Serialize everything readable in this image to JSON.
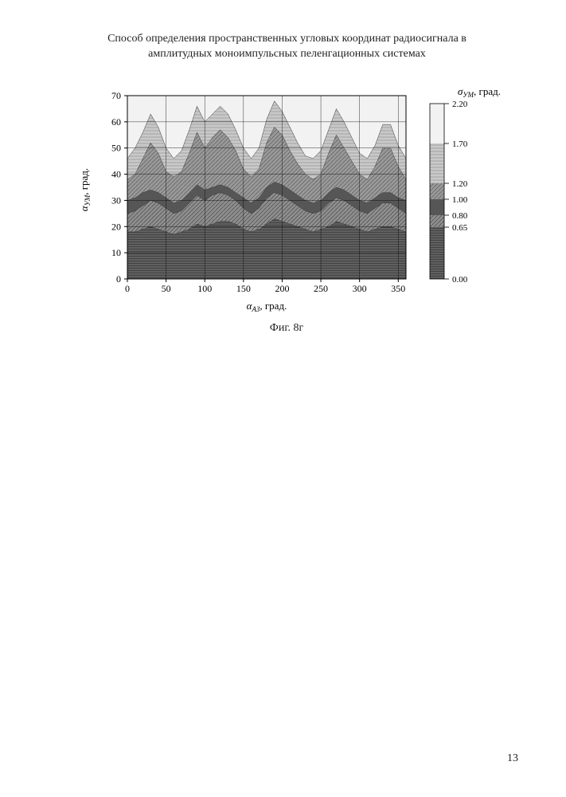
{
  "title_line1": "Способ определения пространственных угловых координат радиосигнала в",
  "title_line2": "амплитудных моноимпульсных пеленгационных системах",
  "caption": "Фиг. 8г",
  "page_number": "13",
  "chart": {
    "type": "filled-contour",
    "xlabel_sym": "α",
    "xlabel_sub": "АЗ",
    "xlabel_unit": ", град.",
    "ylabel_sym": "α",
    "ylabel_sub": "УМ",
    "ylabel_unit": ", град.",
    "cblabel_sym": "σ",
    "cblabel_sub": "УМ",
    "cblabel_unit": ", град.",
    "xlim": [
      0,
      360
    ],
    "ylim": [
      0,
      70
    ],
    "xticks": [
      0,
      50,
      100,
      150,
      200,
      250,
      300,
      350
    ],
    "yticks": [
      0,
      10,
      20,
      30,
      40,
      50,
      60,
      70
    ],
    "cb_levels": [
      0.0,
      0.65,
      0.8,
      1.0,
      1.2,
      1.7,
      2.2
    ],
    "cb_colors": [
      "#606060",
      "#8f8f8f",
      "#565656",
      "#9a9a9a",
      "#c9c9c9",
      "#f2f2f2"
    ],
    "cb_hatch": [
      "horiz",
      "diag",
      "solid",
      "diag",
      "horiz",
      "none"
    ],
    "background_color": "#ffffff",
    "grid_color": "#000000",
    "period_deg": 72,
    "contour_series": {
      "comment": "Approximate upper-boundary y-values (deg) for each level band, sampled every 10 deg in x. Bands stack from bottom (0.00) to top (2.20). Values read from figure gridlines.",
      "x_samples": [
        0,
        10,
        20,
        30,
        40,
        50,
        60,
        70,
        80,
        90,
        100,
        110,
        120,
        130,
        140,
        150,
        160,
        170,
        180,
        190,
        200,
        210,
        220,
        230,
        240,
        250,
        260,
        270,
        280,
        290,
        300,
        310,
        320,
        330,
        340,
        350,
        360
      ],
      "top_0_00": [
        18,
        18,
        19,
        20,
        19,
        18,
        17,
        18,
        19,
        21,
        20,
        21,
        22,
        22,
        21,
        19,
        18,
        19,
        21,
        23,
        22,
        21,
        20,
        19,
        18,
        19,
        20,
        22,
        21,
        20,
        19,
        18,
        19,
        20,
        20,
        19,
        18
      ],
      "top_0_65": [
        25,
        26,
        28,
        30,
        29,
        27,
        25,
        26,
        29,
        32,
        30,
        32,
        33,
        32,
        30,
        27,
        25,
        27,
        31,
        33,
        32,
        30,
        28,
        26,
        25,
        26,
        29,
        31,
        30,
        28,
        26,
        25,
        27,
        29,
        29,
        27,
        25
      ],
      "top_0_80": [
        30,
        31,
        33,
        34,
        33,
        31,
        29,
        30,
        33,
        36,
        34,
        35,
        36,
        35,
        33,
        31,
        29,
        31,
        35,
        37,
        36,
        34,
        32,
        30,
        29,
        30,
        33,
        35,
        34,
        32,
        30,
        29,
        31,
        33,
        33,
        31,
        30
      ],
      "top_1_00": [
        38,
        40,
        46,
        52,
        48,
        41,
        39,
        41,
        48,
        56,
        50,
        54,
        57,
        54,
        49,
        42,
        39,
        42,
        52,
        58,
        55,
        49,
        44,
        40,
        38,
        40,
        48,
        55,
        50,
        45,
        40,
        38,
        43,
        50,
        50,
        43,
        38
      ],
      "top_1_20": [
        46,
        50,
        56,
        63,
        58,
        50,
        46,
        49,
        57,
        66,
        60,
        63,
        66,
        63,
        57,
        50,
        46,
        50,
        61,
        68,
        64,
        58,
        52,
        47,
        46,
        49,
        57,
        65,
        60,
        54,
        48,
        46,
        51,
        59,
        59,
        51,
        46
      ],
      "top_1_70": [
        58,
        62,
        67,
        70,
        69,
        62,
        58,
        61,
        67,
        70,
        69,
        70,
        70,
        70,
        68,
        62,
        58,
        62,
        69,
        70,
        70,
        68,
        63,
        59,
        58,
        61,
        67,
        70,
        69,
        64,
        60,
        58,
        63,
        68,
        68,
        63,
        58
      ]
    }
  }
}
